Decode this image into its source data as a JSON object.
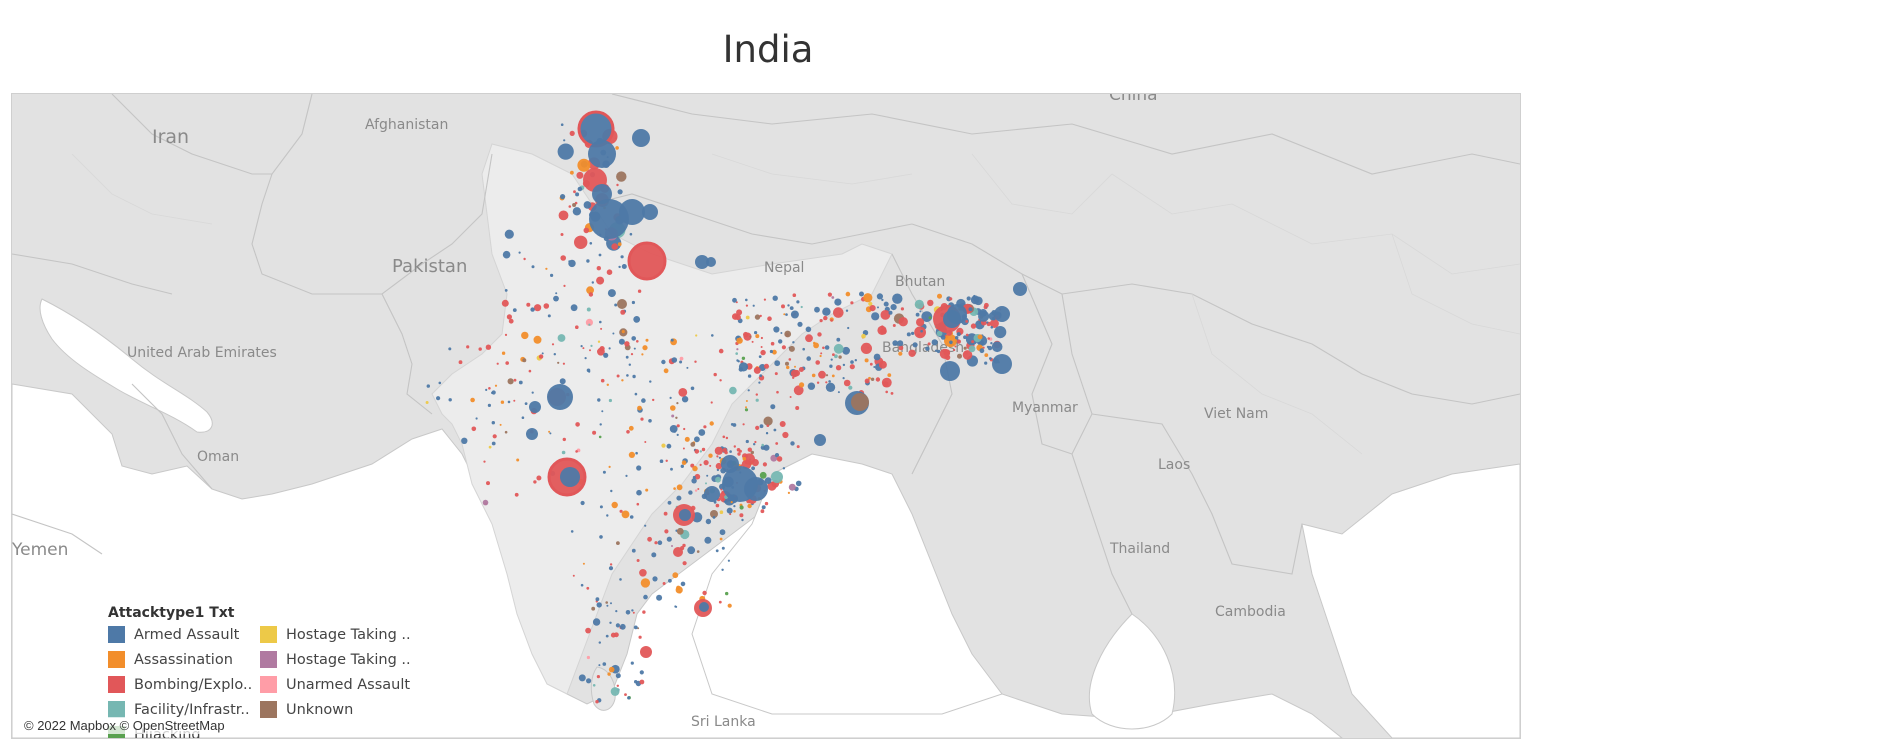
{
  "title": "India",
  "legend": {
    "title": "Attacktype1 Txt",
    "items": [
      {
        "label": "Armed Assault",
        "color": "#4e79a7"
      },
      {
        "label": "Assassination",
        "color": "#f28e2b"
      },
      {
        "label": "Bombing/Explo..",
        "color": "#e15759"
      },
      {
        "label": "Facility/Infrastr..",
        "color": "#76b7b2"
      },
      {
        "label": "Hijacking",
        "color": "#59a14f"
      },
      {
        "label": "Hostage Taking ..",
        "color": "#edc948"
      },
      {
        "label": "Hostage Taking ..",
        "color": "#b07aa1"
      },
      {
        "label": "Unarmed Assault",
        "color": "#ff9da7"
      },
      {
        "label": "Unknown",
        "color": "#9c755f"
      }
    ]
  },
  "map_labels": [
    {
      "name": "China"
    },
    {
      "name": "Iran"
    },
    {
      "name": "Afghanistan"
    },
    {
      "name": "Pakistan"
    },
    {
      "name": "Nepal"
    },
    {
      "name": "Bhutan"
    },
    {
      "name": "Bangladesh"
    },
    {
      "name": "United Arab Emirates"
    },
    {
      "name": "Oman"
    },
    {
      "name": "Myanmar"
    },
    {
      "name": "Viet Nam"
    },
    {
      "name": "Laos"
    },
    {
      "name": "Thailand"
    },
    {
      "name": "Cambodia"
    },
    {
      "name": "Yemen"
    },
    {
      "name": "Sri Lanka"
    }
  ],
  "attribution": "© 2022 Mapbox © OpenStreetMap",
  "colors": {
    "land": "#e4e4e4",
    "india": "#eeeeee",
    "sea": "#ffffff",
    "border": "#c4c4c4"
  }
}
